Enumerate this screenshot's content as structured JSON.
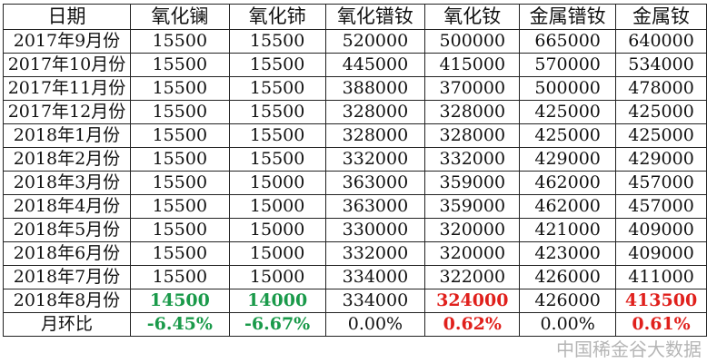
{
  "table": {
    "headers": [
      "日期",
      "氧化镧",
      "氧化铈",
      "氧化镨钕",
      "氧化钕",
      "金属镨钕",
      "金属钕"
    ],
    "rows": [
      [
        "2017年9月份",
        "15500",
        "15500",
        "520000",
        "500000",
        "665000",
        "640000"
      ],
      [
        "2017年10月份",
        "15500",
        "15500",
        "445000",
        "415000",
        "570000",
        "534000"
      ],
      [
        "2017年11月份",
        "15500",
        "15500",
        "388000",
        "370000",
        "500000",
        "478000"
      ],
      [
        "2017年12月份",
        "15500",
        "15500",
        "328000",
        "328000",
        "425000",
        "425000"
      ],
      [
        "2018年1月份",
        "15500",
        "15500",
        "328000",
        "328000",
        "425000",
        "425000"
      ],
      [
        "2018年2月份",
        "15500",
        "15500",
        "332000",
        "332000",
        "429000",
        "429000"
      ],
      [
        "2018年3月份",
        "15500",
        "15000",
        "363000",
        "359000",
        "462000",
        "457000"
      ],
      [
        "2018年4月份",
        "15500",
        "15000",
        "363000",
        "359000",
        "462000",
        "457000"
      ],
      [
        "2018年5月份",
        "15500",
        "15000",
        "330000",
        "320000",
        "421000",
        "409000"
      ],
      [
        "2018年6月份",
        "15500",
        "15000",
        "332000",
        "320000",
        "423000",
        "409000"
      ],
      [
        "2018年7月份",
        "15500",
        "15000",
        "334000",
        "322000",
        "426000",
        "411000"
      ],
      [
        "2018年8月份",
        "14500",
        "14000",
        "334000",
        "324000",
        "426000",
        "413500"
      ],
      [
        "月环比",
        "-6.45%",
        "-6.67%",
        "0.00%",
        "0.62%",
        "0.00%",
        "0.61%"
      ]
    ],
    "highlight": {
      "green": "#1a9a4a",
      "red": "#e0201c",
      "cells": {
        "green": [
          [
            11,
            1
          ],
          [
            11,
            2
          ],
          [
            12,
            1
          ],
          [
            12,
            2
          ]
        ],
        "red": [
          [
            11,
            4
          ],
          [
            11,
            6
          ],
          [
            12,
            4
          ],
          [
            12,
            6
          ]
        ]
      }
    }
  },
  "watermark": {
    "text": "中国稀金谷大数据",
    "corner": "k"
  }
}
